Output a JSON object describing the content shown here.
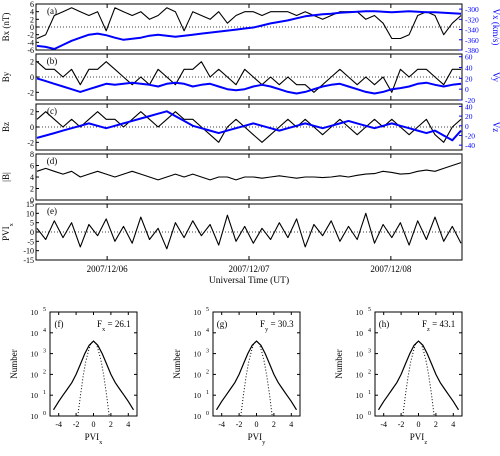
{
  "chart_data": [
    {
      "type": "line",
      "panel": "(a)",
      "ylabel": "Bx (nT)",
      "ylim": [
        -6,
        6
      ],
      "yticks": [
        "-6",
        "-4",
        "-2",
        "0",
        "2",
        "4",
        "6"
      ],
      "right_ylabel": "Vx (km/s)",
      "right_ylim": [
        -380,
        -290
      ],
      "right_yticks": [
        "-300",
        "-320",
        "-340",
        "-360",
        "-380"
      ],
      "series": [
        {
          "axis": "left",
          "color": "#000000",
          "values": [
            -3,
            -2,
            3,
            4,
            5,
            4,
            3,
            4,
            -1,
            5,
            4,
            3,
            4,
            2,
            3,
            5,
            4,
            -1,
            4,
            3,
            2,
            4,
            1,
            3,
            4,
            4,
            3,
            4,
            4,
            4,
            3,
            4,
            3,
            2,
            3,
            4,
            4,
            4,
            2,
            3,
            1,
            -3,
            -3,
            -2,
            3,
            4,
            3,
            -2,
            1,
            3
          ]
        },
        {
          "axis": "right",
          "color": "#0000ff",
          "values": [
            -372,
            -374,
            -378,
            -370,
            -362,
            -356,
            -350,
            -348,
            -351,
            -356,
            -360,
            -358,
            -356,
            -352,
            -350,
            -352,
            -354,
            -352,
            -350,
            -348,
            -346,
            -344,
            -342,
            -340,
            -338,
            -336,
            -332,
            -328,
            -325,
            -322,
            -318,
            -314,
            -312,
            -310,
            -309,
            -307,
            -306,
            -305,
            -304,
            -304,
            -305,
            -306,
            -305,
            -304,
            -305,
            -306,
            -306,
            -307,
            -308,
            -309
          ]
        }
      ]
    },
    {
      "type": "line",
      "panel": "(b)",
      "ylabel": "By",
      "ylim": [
        -3,
        3
      ],
      "yticks": [
        "-2",
        "0",
        "2"
      ],
      "right_ylabel": "Vy",
      "right_ylim": [
        -20,
        65
      ],
      "right_yticks": [
        "60",
        "40",
        "20",
        "0",
        "-20"
      ],
      "series": [
        {
          "axis": "left",
          "color": "#000000",
          "values": [
            2,
            1,
            1,
            0,
            1,
            -1,
            1,
            1,
            2,
            1,
            0,
            -1,
            0,
            -1,
            1,
            0,
            -1,
            1,
            1,
            2,
            0,
            1,
            0,
            -1,
            1,
            0,
            -1,
            0,
            -1,
            0,
            -1,
            -1,
            -2,
            -1,
            0,
            1,
            0,
            -1,
            0,
            -1,
            0,
            -2,
            1,
            0,
            1,
            1,
            0,
            -1,
            1,
            1
          ]
        },
        {
          "axis": "right",
          "color": "#0000ff",
          "values": [
            20,
            15,
            10,
            5,
            0,
            -5,
            0,
            5,
            10,
            8,
            10,
            12,
            10,
            8,
            5,
            10,
            12,
            10,
            5,
            8,
            10,
            5,
            0,
            -2,
            0,
            5,
            8,
            5,
            0,
            -5,
            -8,
            -5,
            0,
            5,
            8,
            10,
            5,
            0,
            -5,
            -8,
            -5,
            0,
            2,
            5,
            10,
            12,
            8,
            5,
            8,
            10
          ]
        }
      ]
    },
    {
      "type": "line",
      "panel": "(c)",
      "ylabel": "Bz",
      "ylim": [
        -3,
        3
      ],
      "yticks": [
        "-2",
        "0",
        "2"
      ],
      "right_ylabel": "Vz",
      "right_ylim": [
        -50,
        45
      ],
      "right_yticks": [
        "40",
        "20",
        "0",
        "-20",
        "-40"
      ],
      "series": [
        {
          "axis": "left",
          "color": "#000000",
          "values": [
            1,
            2,
            1,
            0,
            1,
            0,
            1,
            2,
            1,
            1,
            0,
            1,
            2,
            1,
            0,
            1,
            2,
            1,
            1,
            0,
            -1,
            -2,
            0,
            1,
            0,
            -1,
            -2,
            -1,
            0,
            1,
            0,
            1,
            0,
            -1,
            0,
            1,
            0,
            -1,
            0,
            1,
            0,
            1,
            0,
            -1,
            0,
            1,
            -1,
            -2,
            0,
            1
          ]
        },
        {
          "axis": "right",
          "color": "#0000ff",
          "values": [
            -25,
            -20,
            -15,
            -10,
            -5,
            0,
            5,
            0,
            -5,
            0,
            5,
            10,
            15,
            20,
            25,
            30,
            20,
            10,
            0,
            -5,
            -10,
            -15,
            -10,
            -5,
            0,
            5,
            0,
            -5,
            -10,
            -5,
            0,
            5,
            0,
            -5,
            0,
            5,
            10,
            5,
            0,
            -5,
            0,
            5,
            0,
            -5,
            -10,
            -15,
            -10,
            -20,
            -30,
            -10
          ]
        }
      ]
    },
    {
      "type": "line",
      "panel": "(d)",
      "ylabel": "|B|",
      "ylim": [
        0,
        8
      ],
      "yticks": [
        "0",
        "2",
        "4",
        "6",
        "8"
      ],
      "series": [
        {
          "axis": "left",
          "color": "#000000",
          "values": [
            5,
            5.5,
            5,
            4.5,
            5,
            4,
            4.5,
            5,
            4.5,
            4,
            4.5,
            5,
            4.5,
            4,
            3.5,
            4,
            4.5,
            4,
            4.5,
            4,
            3.5,
            4,
            4,
            3.5,
            4,
            4,
            3.8,
            4,
            4.2,
            4,
            3.8,
            4,
            4,
            3.9,
            4,
            4.2,
            4,
            4.3,
            4.5,
            4.6,
            5,
            4.8,
            4.5,
            4.6,
            5,
            5.2,
            5,
            5.5,
            6,
            6.5
          ]
        }
      ]
    },
    {
      "type": "line",
      "panel": "(e)",
      "ylabel": "PVI",
      "ylabel_sub": "x",
      "ylim": [
        -15,
        15
      ],
      "yticks": [
        "-15",
        "-10",
        "-5",
        "0",
        "5",
        "10",
        "15"
      ],
      "xlabel": "Universal Time (UT)",
      "xticks": [
        "2007/12/06",
        "2007/12/07",
        "2007/12/08"
      ],
      "series": [
        {
          "axis": "left",
          "color": "#000000",
          "values": [
            2,
            -4,
            6,
            -3,
            5,
            -8,
            4,
            -2,
            7,
            -5,
            3,
            -6,
            8,
            -4,
            2,
            -9,
            5,
            -3,
            6,
            -2,
            4,
            -7,
            9,
            -5,
            3,
            -6,
            2,
            -4,
            5,
            -3,
            7,
            -8,
            4,
            -2,
            6,
            -5,
            3,
            -4,
            10,
            -6,
            4,
            -3,
            5,
            -7,
            6,
            -4,
            8,
            -5,
            3,
            -6
          ]
        }
      ]
    },
    {
      "type": "line",
      "panel": "(f)",
      "annotation": "F",
      "annotation_sub": "x",
      "annotation_value": " = 26.1",
      "xlabel": "PVI",
      "xlabel_sub": "x",
      "ylabel": "Number",
      "xlim": [
        -5,
        5
      ],
      "xticks": [
        "-4",
        "-2",
        "0",
        "2",
        "4"
      ],
      "yscale": "log",
      "ylim": [
        0,
        5
      ],
      "yticks": [
        "10^0",
        "10^1",
        "10^2",
        "10^3",
        "10^4",
        "10^5"
      ],
      "series": [
        {
          "style": "solid",
          "x": [
            -4.6,
            -4,
            -3.5,
            -3,
            -2.5,
            -2,
            -1.5,
            -1,
            -0.5,
            0,
            0.5,
            1,
            1.5,
            2,
            2.5,
            3,
            3.5,
            4,
            4.6
          ],
          "log10_y": [
            0.3,
            0.7,
            1,
            1.3,
            1.6,
            2.0,
            2.5,
            3.0,
            3.4,
            3.6,
            3.4,
            3.0,
            2.5,
            2.0,
            1.6,
            1.3,
            1.0,
            0.7,
            0.3
          ]
        },
        {
          "style": "dotted",
          "x": [
            -1.8,
            -1.5,
            -1.2,
            -0.9,
            -0.6,
            -0.3,
            0,
            0.3,
            0.6,
            0.9,
            1.2,
            1.5,
            1.8
          ],
          "log10_y": [
            0,
            1,
            1.9,
            2.6,
            3.1,
            3.5,
            3.6,
            3.5,
            3.1,
            2.6,
            1.9,
            1,
            0
          ]
        }
      ]
    },
    {
      "type": "line",
      "panel": "(g)",
      "annotation": "F",
      "annotation_sub": "y",
      "annotation_value": " = 30.3",
      "xlabel": "PVI",
      "xlabel_sub": "y",
      "ylabel": "Number",
      "xlim": [
        -5,
        5
      ],
      "xticks": [
        "-4",
        "-2",
        "0",
        "2",
        "4"
      ],
      "yscale": "log",
      "ylim": [
        0,
        5
      ],
      "yticks": [
        "10^0",
        "10^1",
        "10^2",
        "10^3",
        "10^4",
        "10^5"
      ],
      "series": [
        {
          "style": "solid",
          "x": [
            -4.6,
            -4,
            -3.5,
            -3,
            -2.5,
            -2,
            -1.5,
            -1,
            -0.5,
            0,
            0.5,
            1,
            1.5,
            2,
            2.5,
            3,
            3.5,
            4,
            4.6
          ],
          "log10_y": [
            0.3,
            0.7,
            1,
            1.3,
            1.6,
            2.0,
            2.5,
            3.0,
            3.4,
            3.6,
            3.4,
            3.0,
            2.5,
            2.0,
            1.6,
            1.3,
            1.0,
            0.7,
            0.3
          ]
        },
        {
          "style": "dotted",
          "x": [
            -1.8,
            -1.5,
            -1.2,
            -0.9,
            -0.6,
            -0.3,
            0,
            0.3,
            0.6,
            0.9,
            1.2,
            1.5,
            1.8
          ],
          "log10_y": [
            0,
            1,
            1.9,
            2.6,
            3.1,
            3.5,
            3.6,
            3.5,
            3.1,
            2.6,
            1.9,
            1,
            0
          ]
        }
      ]
    },
    {
      "type": "line",
      "panel": "(h)",
      "annotation": "F",
      "annotation_sub": "z",
      "annotation_value": " = 43.1",
      "xlabel": "PVI",
      "xlabel_sub": "z",
      "ylabel": "Number",
      "xlim": [
        -5,
        5
      ],
      "xticks": [
        "-4",
        "-2",
        "0",
        "2",
        "4"
      ],
      "yscale": "log",
      "ylim": [
        0,
        5
      ],
      "yticks": [
        "10^0",
        "10^1",
        "10^2",
        "10^3",
        "10^4",
        "10^5"
      ],
      "series": [
        {
          "style": "solid",
          "x": [
            -4.6,
            -4,
            -3.5,
            -3,
            -2.5,
            -2,
            -1.5,
            -1,
            -0.5,
            0,
            0.5,
            1,
            1.5,
            2,
            2.5,
            3,
            3.5,
            4,
            4.6
          ],
          "log10_y": [
            0.3,
            0.7,
            1,
            1.3,
            1.6,
            2.0,
            2.5,
            3.0,
            3.4,
            3.6,
            3.4,
            3.0,
            2.5,
            2.0,
            1.6,
            1.3,
            1.0,
            0.7,
            0.3
          ]
        },
        {
          "style": "dotted",
          "x": [
            -1.8,
            -1.5,
            -1.2,
            -0.9,
            -0.6,
            -0.3,
            0,
            0.3,
            0.6,
            0.9,
            1.2,
            1.5,
            1.8
          ],
          "log10_y": [
            0,
            1,
            1.9,
            2.6,
            3.1,
            3.5,
            3.6,
            3.5,
            3.1,
            2.6,
            1.9,
            1,
            0
          ]
        }
      ]
    }
  ]
}
